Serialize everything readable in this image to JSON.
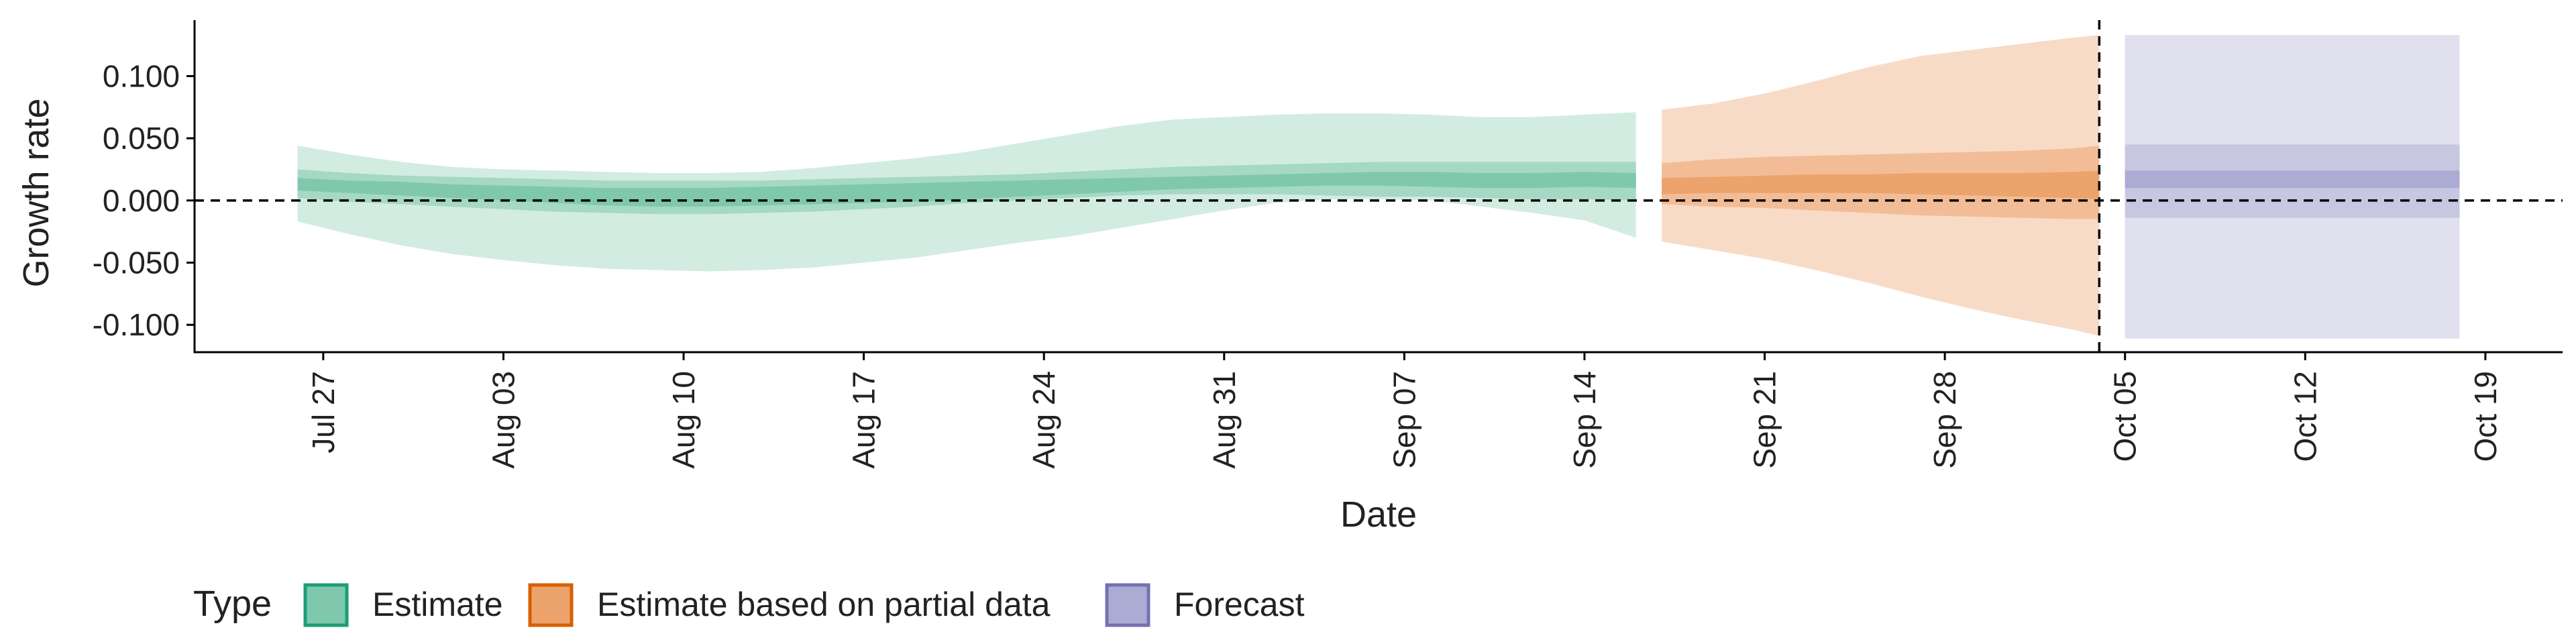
{
  "chart_data": {
    "type": "area",
    "title": "",
    "xlabel": "Date",
    "ylabel": "Growth rate",
    "x_range_days": [
      -5,
      87
    ],
    "ylim": [
      -0.122,
      0.145
    ],
    "x_ticks": [
      {
        "day": 0,
        "label": "Jul 27"
      },
      {
        "day": 7,
        "label": "Aug 03"
      },
      {
        "day": 14,
        "label": "Aug 10"
      },
      {
        "day": 21,
        "label": "Aug 17"
      },
      {
        "day": 28,
        "label": "Aug 24"
      },
      {
        "day": 35,
        "label": "Aug 31"
      },
      {
        "day": 42,
        "label": "Sep 07"
      },
      {
        "day": 49,
        "label": "Sep 14"
      },
      {
        "day": 56,
        "label": "Sep 21"
      },
      {
        "day": 63,
        "label": "Sep 28"
      },
      {
        "day": 70,
        "label": "Oct 05"
      },
      {
        "day": 77,
        "label": "Oct 12"
      },
      {
        "day": 84,
        "label": "Oct 19"
      }
    ],
    "y_ticks": [
      {
        "value": 0.1,
        "label": "0.100"
      },
      {
        "value": 0.05,
        "label": "0.050"
      },
      {
        "value": 0.0,
        "label": "0.000"
      },
      {
        "value": -0.05,
        "label": "-0.050"
      },
      {
        "value": -0.1,
        "label": "-0.100"
      }
    ],
    "reference_lines": {
      "horizontal_y": 0.0,
      "vertical_day": 69.0
    },
    "legend": {
      "title": "Type",
      "position": "bottom-left",
      "entries": [
        {
          "label": "Estimate",
          "fill": "#7fc8ad",
          "stroke": "#1b9e77"
        },
        {
          "label": "Estimate based on partial data",
          "fill": "#eda36c",
          "stroke": "#d95f02"
        },
        {
          "label": "Forecast",
          "fill": "#ababd3",
          "stroke": "#7570b3"
        }
      ]
    },
    "series": [
      {
        "name": "Estimate",
        "colors": {
          "outer": "#d2ece2",
          "mid": "#a5d8c5",
          "inner": "#7fc8ad"
        },
        "x": [
          -1,
          1,
          3,
          5,
          7,
          9,
          11,
          13,
          15,
          17,
          19,
          21,
          23,
          25,
          27,
          29,
          31,
          33,
          35,
          37,
          39,
          41,
          43,
          45,
          47,
          49,
          51
        ],
        "outer_upper": [
          0.044,
          0.037,
          0.031,
          0.027,
          0.025,
          0.024,
          0.023,
          0.022,
          0.022,
          0.023,
          0.026,
          0.03,
          0.034,
          0.039,
          0.046,
          0.053,
          0.06,
          0.065,
          0.067,
          0.069,
          0.07,
          0.07,
          0.069,
          0.067,
          0.067,
          0.069,
          0.071
        ],
        "outer_lower": [
          -0.017,
          -0.027,
          -0.036,
          -0.043,
          -0.048,
          -0.052,
          -0.055,
          -0.056,
          -0.057,
          -0.056,
          -0.054,
          -0.05,
          -0.046,
          -0.04,
          -0.034,
          -0.029,
          -0.022,
          -0.015,
          -0.008,
          -0.002,
          0.001,
          0.001,
          0.0,
          -0.005,
          -0.01,
          -0.016,
          -0.03
        ],
        "mid_upper": [
          0.025,
          0.022,
          0.02,
          0.019,
          0.018,
          0.017,
          0.016,
          0.016,
          0.016,
          0.016,
          0.017,
          0.018,
          0.019,
          0.02,
          0.021,
          0.023,
          0.025,
          0.027,
          0.028,
          0.029,
          0.03,
          0.031,
          0.031,
          0.031,
          0.031,
          0.031,
          0.031
        ],
        "mid_lower": [
          0.002,
          -0.001,
          -0.003,
          -0.005,
          -0.007,
          -0.009,
          -0.01,
          -0.011,
          -0.011,
          -0.01,
          -0.009,
          -0.007,
          -0.005,
          -0.002,
          0.0,
          0.002,
          0.004,
          0.005,
          0.005,
          0.005,
          0.004,
          0.003,
          0.003,
          0.002,
          0.001,
          0.001,
          0.0
        ],
        "inner_upper": [
          0.018,
          0.016,
          0.015,
          0.013,
          0.012,
          0.011,
          0.01,
          0.01,
          0.01,
          0.011,
          0.012,
          0.013,
          0.014,
          0.015,
          0.016,
          0.017,
          0.018,
          0.019,
          0.02,
          0.021,
          0.022,
          0.023,
          0.023,
          0.022,
          0.022,
          0.023,
          0.022
        ],
        "inner_lower": [
          0.008,
          0.006,
          0.004,
          0.002,
          0.0,
          -0.002,
          -0.004,
          -0.005,
          -0.005,
          -0.004,
          -0.003,
          -0.002,
          -0.001,
          0.001,
          0.003,
          0.005,
          0.007,
          0.009,
          0.01,
          0.011,
          0.012,
          0.012,
          0.011,
          0.01,
          0.01,
          0.011,
          0.01
        ]
      },
      {
        "name": "Estimate based on partial data",
        "colors": {
          "outer": "#f8dbc6",
          "mid": "#f2bd96",
          "inner": "#eda36c"
        },
        "x": [
          52,
          54,
          56,
          58,
          60,
          62,
          64,
          66,
          68,
          69
        ],
        "outer_upper": [
          0.073,
          0.078,
          0.086,
          0.096,
          0.107,
          0.116,
          0.121,
          0.126,
          0.131,
          0.133
        ],
        "outer_lower": [
          -0.033,
          -0.04,
          -0.047,
          -0.056,
          -0.066,
          -0.077,
          -0.087,
          -0.096,
          -0.104,
          -0.109
        ],
        "mid_upper": [
          0.03,
          0.033,
          0.035,
          0.036,
          0.037,
          0.038,
          0.039,
          0.04,
          0.042,
          0.044
        ],
        "mid_lower": [
          -0.003,
          -0.005,
          -0.006,
          -0.008,
          -0.01,
          -0.012,
          -0.013,
          -0.014,
          -0.015,
          -0.015
        ],
        "inner_upper": [
          0.018,
          0.019,
          0.02,
          0.021,
          0.021,
          0.022,
          0.022,
          0.022,
          0.023,
          0.024
        ],
        "inner_lower": [
          0.005,
          0.006,
          0.006,
          0.006,
          0.006,
          0.005,
          0.004,
          0.003,
          0.002,
          0.001
        ]
      },
      {
        "name": "Forecast",
        "colors": {
          "outer": "#e0e0ef",
          "mid": "#c7c7e2",
          "inner": "#ababd3"
        },
        "x": [
          70,
          83
        ],
        "outer_upper": [
          0.133,
          0.133
        ],
        "outer_lower": [
          -0.111,
          -0.111
        ],
        "mid_upper": [
          0.045,
          0.045
        ],
        "mid_lower": [
          -0.014,
          -0.014
        ],
        "inner_upper": [
          0.024,
          0.024
        ],
        "inner_lower": [
          0.01,
          0.01
        ]
      }
    ]
  }
}
